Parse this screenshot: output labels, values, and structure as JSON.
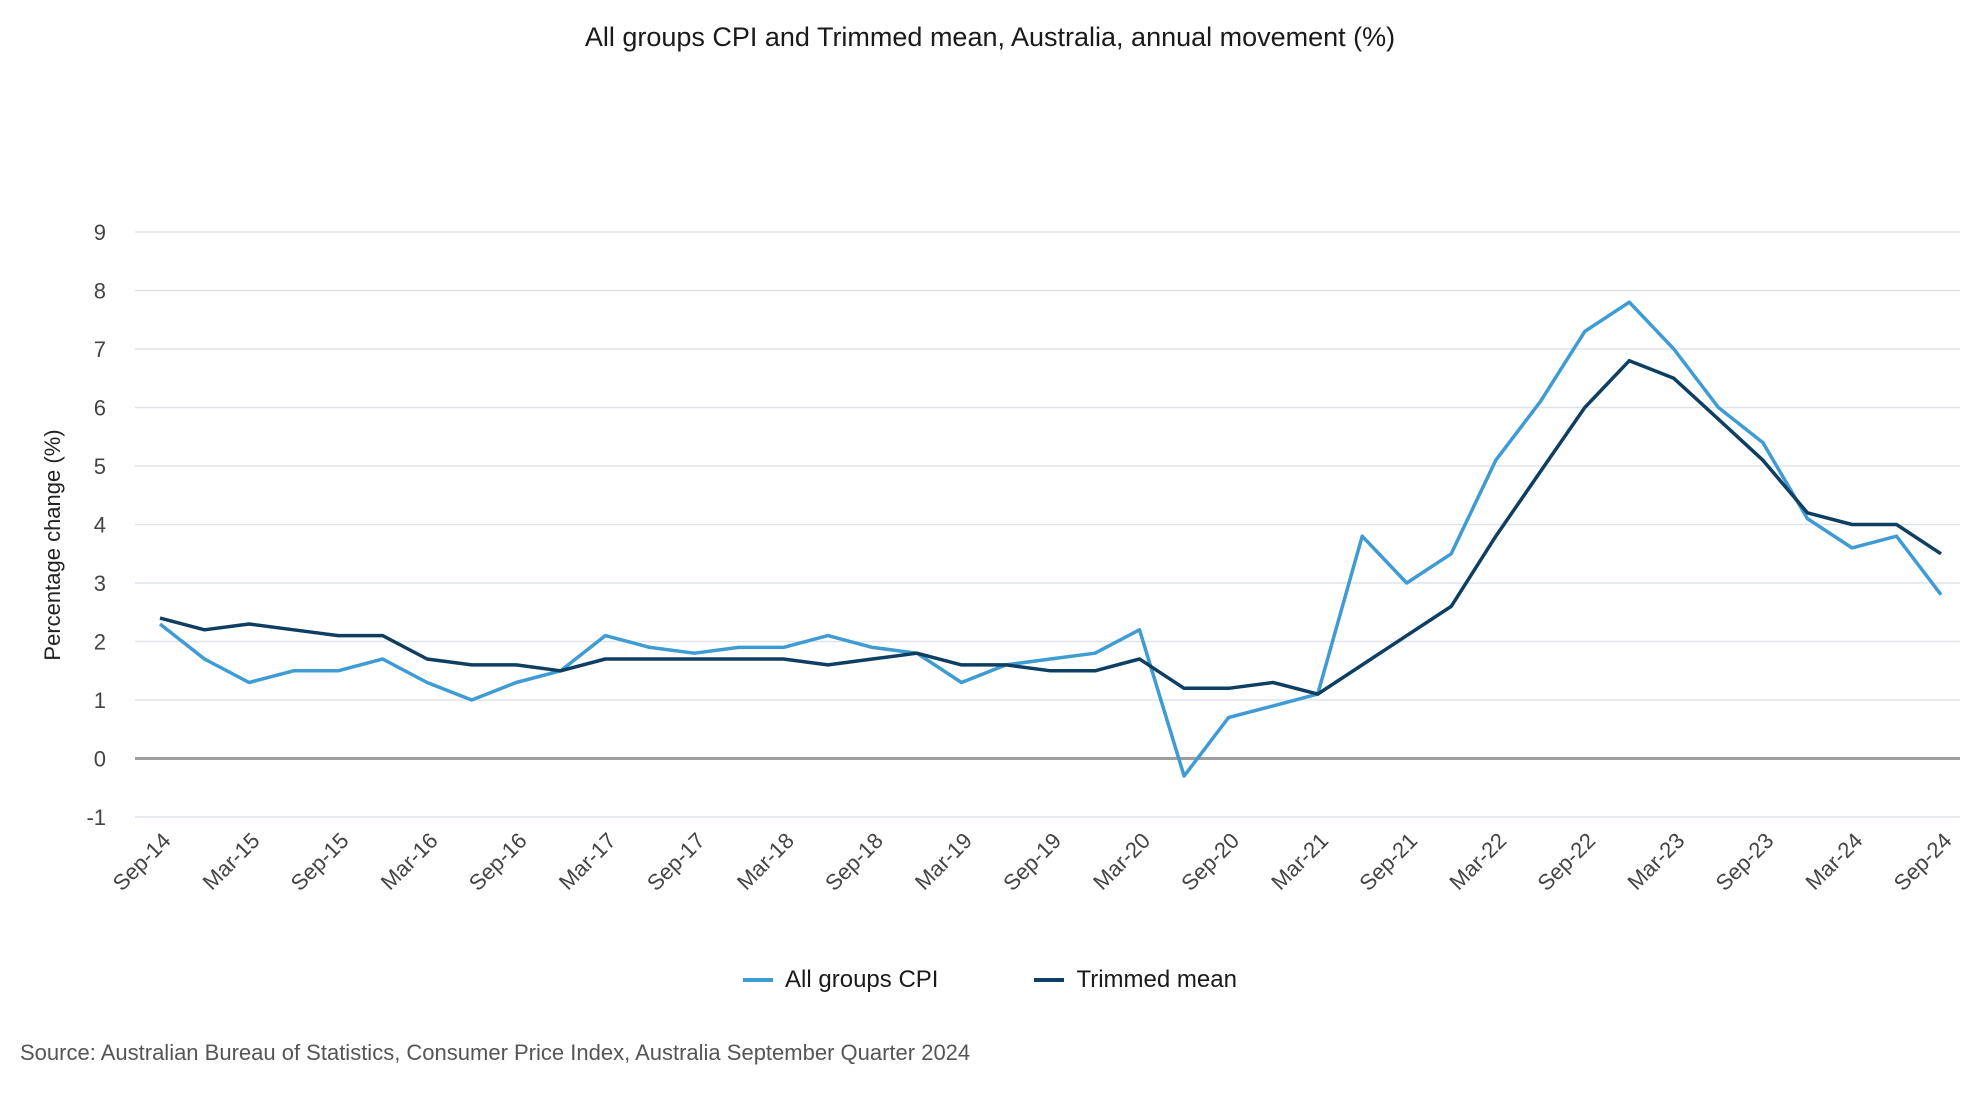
{
  "chart_data": {
    "type": "line",
    "title": "All groups CPI and Trimmed mean, Australia, annual movement (%)",
    "xlabel": "",
    "ylabel": "Percentage change (%)",
    "ylim": [
      -1,
      9
    ],
    "yticks": [
      -1,
      0,
      1,
      2,
      3,
      4,
      5,
      6,
      7,
      8,
      9
    ],
    "x": [
      "Sep-14",
      "Dec-14",
      "Mar-15",
      "Jun-15",
      "Sep-15",
      "Dec-15",
      "Mar-16",
      "Jun-16",
      "Sep-16",
      "Dec-16",
      "Mar-17",
      "Jun-17",
      "Sep-17",
      "Dec-17",
      "Mar-18",
      "Jun-18",
      "Sep-18",
      "Dec-18",
      "Mar-19",
      "Jun-19",
      "Sep-19",
      "Dec-19",
      "Mar-20",
      "Jun-20",
      "Sep-20",
      "Dec-20",
      "Mar-21",
      "Jun-21",
      "Sep-21",
      "Dec-21",
      "Mar-22",
      "Jun-22",
      "Sep-22",
      "Dec-22",
      "Mar-23",
      "Jun-23",
      "Sep-23",
      "Dec-23",
      "Mar-24",
      "Jun-24",
      "Sep-24"
    ],
    "tick_labels": [
      "Sep-14",
      "Mar-15",
      "Sep-15",
      "Mar-16",
      "Sep-16",
      "Mar-17",
      "Sep-17",
      "Mar-18",
      "Sep-18",
      "Mar-19",
      "Sep-19",
      "Mar-20",
      "Sep-20",
      "Mar-21",
      "Sep-21",
      "Mar-22",
      "Sep-22",
      "Mar-23",
      "Sep-23",
      "Mar-24",
      "Sep-24"
    ],
    "series": [
      {
        "name": "All groups CPI",
        "color": "#3e9bd3",
        "values": [
          2.3,
          1.7,
          1.3,
          1.5,
          1.5,
          1.7,
          1.3,
          1.0,
          1.3,
          1.5,
          2.1,
          1.9,
          1.8,
          1.9,
          1.9,
          2.1,
          1.9,
          1.8,
          1.3,
          1.6,
          1.7,
          1.8,
          2.2,
          -0.3,
          0.7,
          0.9,
          1.1,
          3.8,
          3.0,
          3.5,
          5.1,
          6.1,
          7.3,
          7.8,
          7.0,
          6.0,
          5.4,
          4.1,
          3.6,
          3.8,
          2.8
        ]
      },
      {
        "name": "Trimmed mean",
        "color": "#0e3f63",
        "values": [
          2.4,
          2.2,
          2.3,
          2.2,
          2.1,
          2.1,
          1.7,
          1.6,
          1.6,
          1.5,
          1.7,
          1.7,
          1.7,
          1.7,
          1.7,
          1.6,
          1.7,
          1.8,
          1.6,
          1.6,
          1.5,
          1.5,
          1.7,
          1.2,
          1.2,
          1.3,
          1.1,
          1.6,
          2.1,
          2.6,
          3.8,
          4.9,
          6.0,
          6.8,
          6.5,
          5.8,
          5.1,
          4.2,
          4.0,
          4.0,
          3.5
        ]
      }
    ],
    "grid": true,
    "legend": "bottom-center",
    "source": "Source: Australian Bureau of Statistics, Consumer Price Index, Australia September Quarter 2024"
  }
}
